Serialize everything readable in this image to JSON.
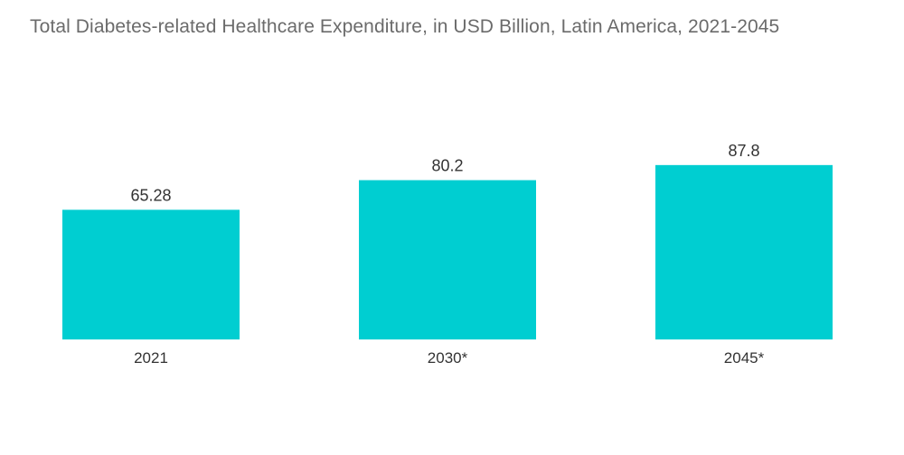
{
  "colors": {
    "bar": "#00CED1",
    "title": "#6b6b6b",
    "text": "#333333",
    "background": "#ffffff"
  },
  "chart_data": {
    "type": "bar",
    "title": "Total Diabetes-related Healthcare Expenditure, in USD Billion, Latin America, 2021-2045",
    "xlabel": "",
    "ylabel": "",
    "categories": [
      "2021",
      "2030*",
      "2045*"
    ],
    "values": [
      65.28,
      80.2,
      87.8
    ],
    "value_labels": [
      "65.28",
      "80.2",
      "87.8"
    ],
    "ylim": [
      0,
      100
    ],
    "grid": false,
    "legend": "none"
  }
}
